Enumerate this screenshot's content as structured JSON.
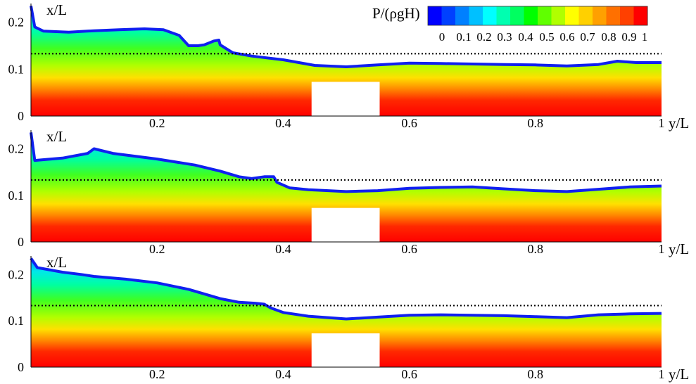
{
  "chart_data": {
    "type": "heatmap",
    "panels": [
      {
        "xlabel": "y/L",
        "ylabel": "x/L",
        "xlim": [
          0,
          1
        ],
        "ylim": [
          0,
          0.24
        ],
        "x_ticks": [
          "0.2",
          "0.4",
          "0.6",
          "0.8",
          "1"
        ],
        "y_ticks": [
          "0",
          "0.1",
          "0.2"
        ],
        "reference_level": 0.133,
        "obstacle": {
          "x": [
            0.445,
            0.553
          ],
          "top": 0.073
        },
        "surface": [
          [
            0,
            0.235
          ],
          [
            0.006,
            0.19
          ],
          [
            0.02,
            0.181
          ],
          [
            0.06,
            0.179
          ],
          [
            0.1,
            0.182
          ],
          [
            0.14,
            0.184
          ],
          [
            0.18,
            0.186
          ],
          [
            0.21,
            0.184
          ],
          [
            0.235,
            0.172
          ],
          [
            0.25,
            0.15
          ],
          [
            0.265,
            0.15
          ],
          [
            0.275,
            0.152
          ],
          [
            0.29,
            0.16
          ],
          [
            0.298,
            0.162
          ],
          [
            0.3,
            0.152
          ],
          [
            0.32,
            0.135
          ],
          [
            0.35,
            0.128
          ],
          [
            0.4,
            0.12
          ],
          [
            0.45,
            0.108
          ],
          [
            0.5,
            0.105
          ],
          [
            0.55,
            0.109
          ],
          [
            0.6,
            0.113
          ],
          [
            0.65,
            0.112
          ],
          [
            0.7,
            0.111
          ],
          [
            0.75,
            0.11
          ],
          [
            0.8,
            0.109
          ],
          [
            0.85,
            0.107
          ],
          [
            0.9,
            0.11
          ],
          [
            0.93,
            0.117
          ],
          [
            0.96,
            0.114
          ],
          [
            1,
            0.114
          ]
        ]
      },
      {
        "xlabel": "y/L",
        "ylabel": "x/L",
        "xlim": [
          0,
          1
        ],
        "ylim": [
          0,
          0.24
        ],
        "x_ticks": [
          "0.2",
          "0.4",
          "0.6",
          "0.8",
          "1"
        ],
        "y_ticks": [
          "0",
          "0.1",
          "0.2"
        ],
        "reference_level": 0.133,
        "obstacle": {
          "x": [
            0.445,
            0.553
          ],
          "top": 0.073
        },
        "surface": [
          [
            0,
            0.235
          ],
          [
            0.006,
            0.175
          ],
          [
            0.05,
            0.18
          ],
          [
            0.09,
            0.19
          ],
          [
            0.1,
            0.2
          ],
          [
            0.13,
            0.19
          ],
          [
            0.2,
            0.178
          ],
          [
            0.26,
            0.165
          ],
          [
            0.3,
            0.152
          ],
          [
            0.33,
            0.14
          ],
          [
            0.35,
            0.136
          ],
          [
            0.37,
            0.14
          ],
          [
            0.385,
            0.14
          ],
          [
            0.39,
            0.128
          ],
          [
            0.41,
            0.116
          ],
          [
            0.44,
            0.112
          ],
          [
            0.5,
            0.108
          ],
          [
            0.55,
            0.11
          ],
          [
            0.6,
            0.115
          ],
          [
            0.65,
            0.117
          ],
          [
            0.7,
            0.118
          ],
          [
            0.75,
            0.114
          ],
          [
            0.8,
            0.11
          ],
          [
            0.85,
            0.108
          ],
          [
            0.9,
            0.113
          ],
          [
            0.95,
            0.118
          ],
          [
            1,
            0.12
          ]
        ]
      },
      {
        "xlabel": "y/L",
        "ylabel": "x/L",
        "xlim": [
          0,
          1
        ],
        "ylim": [
          0,
          0.24
        ],
        "x_ticks": [
          "0.2",
          "0.4",
          "0.6",
          "0.8",
          "1"
        ],
        "y_ticks": [
          "0",
          "0.1",
          "0.2"
        ],
        "reference_level": 0.133,
        "obstacle": {
          "x": [
            0.445,
            0.553
          ],
          "top": 0.073
        },
        "surface": [
          [
            0,
            0.235
          ],
          [
            0.01,
            0.215
          ],
          [
            0.05,
            0.205
          ],
          [
            0.08,
            0.2
          ],
          [
            0.1,
            0.196
          ],
          [
            0.15,
            0.19
          ],
          [
            0.2,
            0.182
          ],
          [
            0.25,
            0.168
          ],
          [
            0.3,
            0.148
          ],
          [
            0.33,
            0.14
          ],
          [
            0.355,
            0.138
          ],
          [
            0.37,
            0.136
          ],
          [
            0.38,
            0.128
          ],
          [
            0.4,
            0.118
          ],
          [
            0.44,
            0.11
          ],
          [
            0.5,
            0.104
          ],
          [
            0.55,
            0.108
          ],
          [
            0.6,
            0.112
          ],
          [
            0.65,
            0.113
          ],
          [
            0.7,
            0.112
          ],
          [
            0.75,
            0.111
          ],
          [
            0.8,
            0.109
          ],
          [
            0.85,
            0.107
          ],
          [
            0.9,
            0.113
          ],
          [
            0.95,
            0.115
          ],
          [
            1,
            0.116
          ]
        ]
      }
    ],
    "colorbar": {
      "label": "P/(ρgH)",
      "range": [
        0,
        1
      ],
      "tick_labels": [
        "0",
        "0.1",
        "0.2",
        "0.3",
        "0.4",
        "0.5",
        "0.6",
        "0.7",
        "0.8",
        "0.9",
        "1"
      ],
      "colors": [
        "#0000ff",
        "#0040ff",
        "#0080ff",
        "#00c0ff",
        "#00ffff",
        "#00ffb0",
        "#00ff60",
        "#00ff00",
        "#60ff00",
        "#b0ff00",
        "#ffff00",
        "#ffd000",
        "#ffa000",
        "#ff7000",
        "#ff4000",
        "#ff0000"
      ]
    }
  }
}
